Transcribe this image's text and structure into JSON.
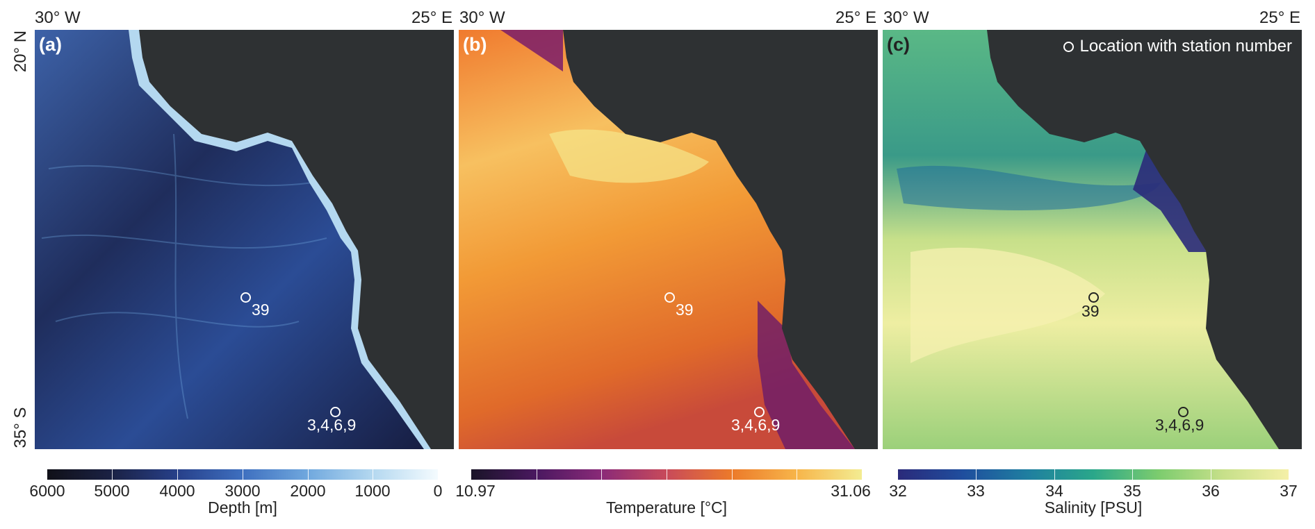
{
  "coords": {
    "lon_west": "30° W",
    "lon_east": "25° E",
    "lat_north": "20° N",
    "lat_south": "35° S"
  },
  "panels": [
    {
      "letter": "(a)",
      "variable": "Depth",
      "colors": [
        "#101018",
        "#1b2245",
        "#27408a",
        "#3e6fbf",
        "#70a8de",
        "#b4d8f0",
        "#f4fbfe"
      ],
      "ocean_color": "#2a4a8c",
      "land_color": "#2e3133",
      "stations": [
        {
          "number": "39",
          "lon_frac": 0.42,
          "lat_frac": 0.64
        },
        {
          "number": "3,4,6,9",
          "lon_frac": 0.59,
          "lat_frac": 0.91
        }
      ],
      "station_color": "#ffffff",
      "colorbar": {
        "ticks": [
          "6000",
          "5000",
          "4000",
          "3000",
          "2000",
          "1000",
          "0"
        ],
        "title": "Depth [m]"
      }
    },
    {
      "letter": "(b)",
      "variable": "Temperature",
      "colors": [
        "#1a1428",
        "#4a1860",
        "#8a2a78",
        "#c84a5a",
        "#ec7a2a",
        "#f7b54a",
        "#f3ec92"
      ],
      "ocean_color": "#f08a2a",
      "land_color": "#2e3133",
      "stations": [
        {
          "number": "39",
          "lon_frac": 0.42,
          "lat_frac": 0.64
        },
        {
          "number": "3,4,6,9",
          "lon_frac": 0.59,
          "lat_frac": 0.91
        }
      ],
      "station_color": "#ffffff",
      "colorbar": {
        "min": "10.97",
        "max": "31.06",
        "title": "Temperature [°C]"
      }
    },
    {
      "letter": "(c)",
      "variable": "Salinity",
      "colors": [
        "#2a2a7a",
        "#1f4e9e",
        "#1f7fa0",
        "#2aa78a",
        "#7ccc6e",
        "#c7e08a",
        "#f5f0a8"
      ],
      "ocean_color": "#9bd07a",
      "land_color": "#2e3133",
      "legend": "Location with station number",
      "stations": [
        {
          "number": "39",
          "lon_frac": 0.42,
          "lat_frac": 0.64
        },
        {
          "number": "3,4,6,9",
          "lon_frac": 0.59,
          "lat_frac": 0.91
        }
      ],
      "station_color": "#222222",
      "colorbar": {
        "ticks": [
          "32",
          "33",
          "34",
          "35",
          "36",
          "37"
        ],
        "title": "Salinity [PSU]"
      }
    }
  ]
}
